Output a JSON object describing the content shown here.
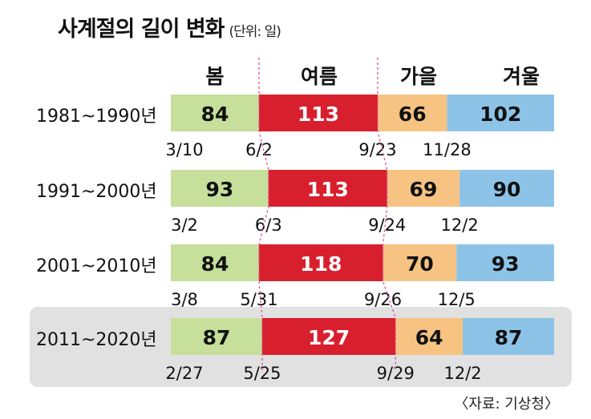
{
  "chart_data": {
    "type": "bar",
    "stacked": true,
    "orientation": "horizontal",
    "title": "사계절의 길이 변화",
    "unit": "(단위: 일)",
    "source": "〈자료: 기상청〉",
    "categories": [
      "1981~1990년",
      "1991~2000년",
      "2001~2010년",
      "2011~2020년"
    ],
    "highlighted_category": "2011~2020년",
    "series": [
      {
        "name": "봄",
        "color": "#c6df9b",
        "values": [
          84,
          93,
          84,
          87
        ]
      },
      {
        "name": "여름",
        "color": "#d81f2e",
        "values": [
          113,
          113,
          118,
          127
        ]
      },
      {
        "name": "가을",
        "color": "#f6c383",
        "values": [
          66,
          69,
          70,
          64
        ]
      },
      {
        "name": "겨울",
        "color": "#8dc3e7",
        "values": [
          102,
          90,
          93,
          87
        ]
      }
    ],
    "season_start_dates": [
      [
        "3/10",
        "6/2",
        "9/23",
        "11/28"
      ],
      [
        "3/2",
        "6/3",
        "9/24",
        "12/2"
      ],
      [
        "3/8",
        "5/31",
        "9/26",
        "12/5"
      ],
      [
        "2/27",
        "5/25",
        "9/29",
        "12/2"
      ]
    ]
  }
}
